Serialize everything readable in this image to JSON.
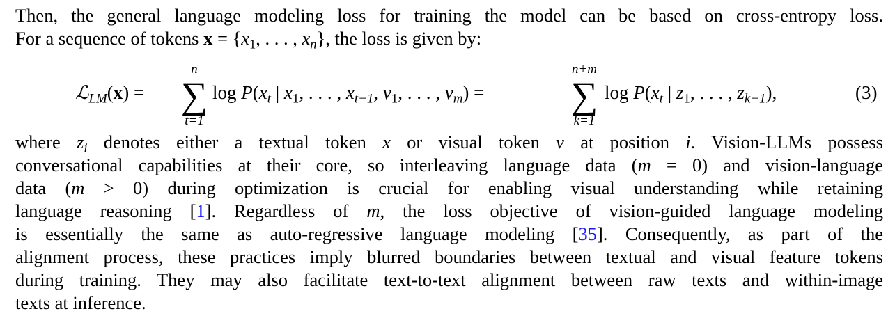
{
  "para1": [
    [
      {
        "t": "Then, the general language modeling loss for training the model can be based on cross-entropy loss."
      }
    ],
    [
      {
        "t": "For a sequence of tokens "
      },
      {
        "t": "x",
        "s": "bf"
      },
      {
        "t": " = {"
      },
      {
        "t": "x",
        "s": "it"
      },
      {
        "t": "1",
        "s": "sub"
      },
      {
        "t": ", . . . , "
      },
      {
        "t": "x",
        "s": "it"
      },
      {
        "t": "n",
        "s": "sub it"
      },
      {
        "t": "}, the loss is given by:"
      }
    ]
  ],
  "equation": {
    "lhs": [
      {
        "t": "ℒ",
        "s": "cal"
      },
      {
        "t": "LM",
        "s": "sub it"
      },
      {
        "t": "("
      },
      {
        "t": "x",
        "s": "bf"
      },
      {
        "t": ") ="
      }
    ],
    "sum1_upper": "n",
    "sum1_lower": "t=1",
    "sum_symbol": "∑",
    "term1": [
      {
        "t": "log "
      },
      {
        "t": "P",
        "s": "it"
      },
      {
        "t": "("
      },
      {
        "t": "x",
        "s": "it"
      },
      {
        "t": "t",
        "s": "sub it"
      },
      {
        "t": " | "
      },
      {
        "t": "x",
        "s": "it"
      },
      {
        "t": "1",
        "s": "sub"
      },
      {
        "t": ", . . . , "
      },
      {
        "t": "x",
        "s": "it"
      },
      {
        "t": "t−1",
        "s": "sub it"
      },
      {
        "t": ", "
      },
      {
        "t": "v",
        "s": "it"
      },
      {
        "t": "1",
        "s": "sub"
      },
      {
        "t": ", . . . , "
      },
      {
        "t": "v",
        "s": "it"
      },
      {
        "t": "m",
        "s": "sub it"
      },
      {
        "t": ") ="
      }
    ],
    "sum2_upper": "n+m",
    "sum2_lower": "k=1",
    "term2": [
      {
        "t": "log "
      },
      {
        "t": "P",
        "s": "it"
      },
      {
        "t": "("
      },
      {
        "t": "x",
        "s": "it"
      },
      {
        "t": "t",
        "s": "sub it"
      },
      {
        "t": " | "
      },
      {
        "t": "z",
        "s": "it"
      },
      {
        "t": "1",
        "s": "sub"
      },
      {
        "t": ", . . . , "
      },
      {
        "t": "z",
        "s": "it"
      },
      {
        "t": "k−1",
        "s": "sub it"
      },
      {
        "t": "),"
      }
    ],
    "number": "(3)"
  },
  "para2": [
    [
      {
        "t": "where "
      },
      {
        "t": "z",
        "s": "it"
      },
      {
        "t": "i",
        "s": "sub it"
      },
      {
        "t": " denotes either a textual token "
      },
      {
        "t": "x",
        "s": "it"
      },
      {
        "t": " or visual token "
      },
      {
        "t": "v",
        "s": "it"
      },
      {
        "t": " at position "
      },
      {
        "t": "i",
        "s": "it"
      },
      {
        "t": ".  Vision-LLMs possess"
      }
    ],
    [
      {
        "t": "conversational capabilities at their core, so interleaving language data ("
      },
      {
        "t": "m",
        "s": "it"
      },
      {
        "t": " = 0) and vision-language"
      }
    ],
    [
      {
        "t": "data ("
      },
      {
        "t": "m",
        "s": "it"
      },
      {
        "t": " > 0) during optimization is crucial for enabling visual understanding while retaining"
      }
    ],
    [
      {
        "t": "language reasoning ["
      },
      {
        "t": "1",
        "s": "cite"
      },
      {
        "t": "]. Regardless of "
      },
      {
        "t": "m",
        "s": "it"
      },
      {
        "t": ", the loss objective of vision-guided language modeling"
      }
    ],
    [
      {
        "t": "is essentially the same as auto-regressive language modeling ["
      },
      {
        "t": "35",
        "s": "cite"
      },
      {
        "t": "]. Consequently, as part of the"
      }
    ],
    [
      {
        "t": "alignment process, these practices imply blurred boundaries between textual and visual feature tokens"
      }
    ],
    [
      {
        "t": "during training. They may also facilitate text-to-text alignment between raw texts and within-image"
      }
    ],
    [
      {
        "t": "texts at inference."
      }
    ]
  ],
  "colors": {
    "citation": "#1a1aff",
    "text": "#000000"
  }
}
